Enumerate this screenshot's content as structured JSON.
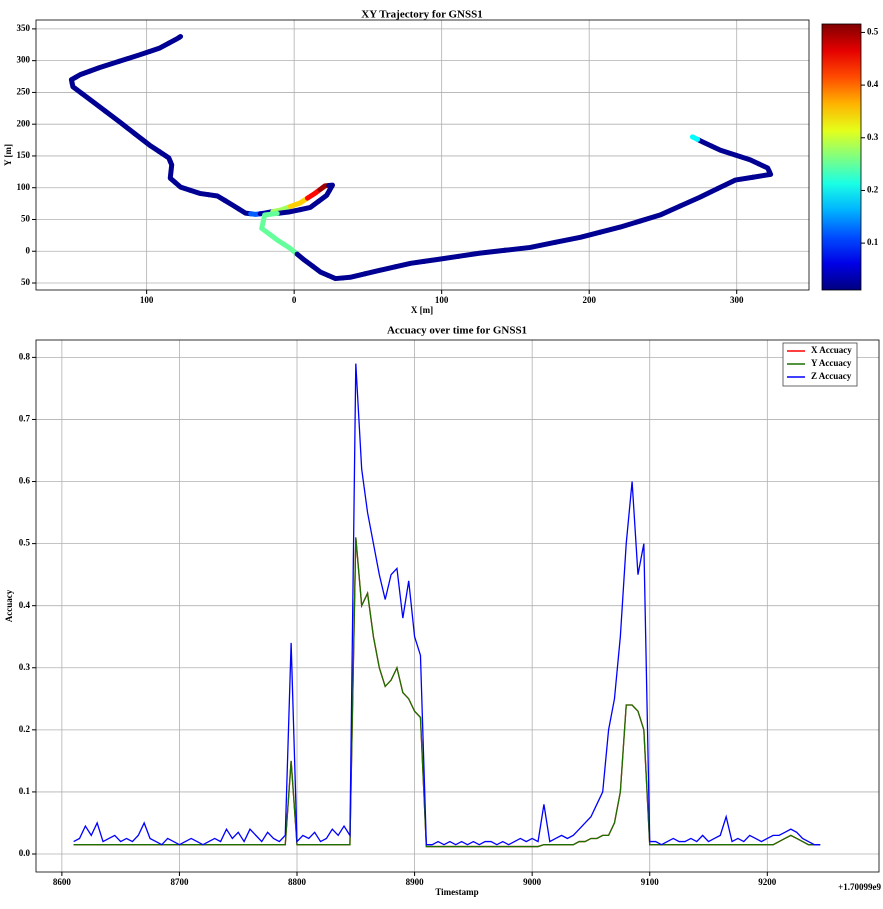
{
  "chart_data": [
    {
      "type": "scatter",
      "title": "XY Trajectory for GNSS1",
      "xlabel": "X [m]",
      "ylabel": "Y [m]",
      "x": [
        -77,
        -79,
        -91,
        -105,
        -132,
        -145,
        -151,
        -150,
        -138,
        -118,
        -98,
        -85,
        -83,
        -84,
        -77,
        -64,
        -52,
        -42,
        -33,
        -26,
        -20,
        -9,
        4,
        14,
        21,
        26,
        22,
        11,
        -3,
        -20,
        -22,
        -11,
        -3,
        7,
        18,
        28,
        38,
        58,
        79,
        97,
        126,
        160,
        194,
        221,
        248,
        275,
        299,
        323,
        321,
        309,
        289,
        277,
        270
      ],
      "y": [
        338,
        335,
        320,
        309,
        289,
        278,
        270,
        259,
        238,
        203,
        167,
        147,
        136,
        115,
        101,
        91,
        87,
        73,
        60,
        58,
        60,
        65,
        76,
        91,
        103,
        104,
        88,
        69,
        62,
        57,
        36,
        17,
        5,
        -14,
        -33,
        -43,
        -41,
        -30,
        -19,
        -13,
        -3,
        6,
        22,
        38,
        57,
        85,
        112,
        121,
        131,
        144,
        159,
        172,
        180
      ],
      "values": [
        0.02,
        0.02,
        0.02,
        0.02,
        0.02,
        0.02,
        0.02,
        0.02,
        0.02,
        0.02,
        0.02,
        0.02,
        0.02,
        0.02,
        0.02,
        0.02,
        0.02,
        0.02,
        0.02,
        0.12,
        0.03,
        0.28,
        0.35,
        0.45,
        0.5,
        0.02,
        0.02,
        0.02,
        0.02,
        0.25,
        0.25,
        0.25,
        0.25,
        0.02,
        0.02,
        0.02,
        0.02,
        0.02,
        0.02,
        0.02,
        0.02,
        0.02,
        0.02,
        0.02,
        0.02,
        0.02,
        0.02,
        0.02,
        0.02,
        0.02,
        0.02,
        0.02,
        0.2
      ],
      "colormap": "jet",
      "clim": [
        0.011,
        0.516
      ],
      "colorbar_ticks": [
        0.1,
        0.2,
        0.3,
        0.4,
        0.5
      ],
      "xlim": [
        -175,
        349
      ],
      "ylim": [
        -61,
        364
      ],
      "xticks": [
        {
          "value": -100,
          "label": "100"
        },
        0,
        100,
        200,
        300
      ],
      "yticks": [
        {
          "value": -50,
          "label": "50"
        },
        0,
        50,
        100,
        150,
        200,
        250,
        300,
        350
      ],
      "grid": true
    },
    {
      "type": "line",
      "title": "Accuacy over time for GNSS1",
      "xlabel": "Timestamp",
      "ylabel": "Accuacy",
      "x_offset_label": "+1.70099e9",
      "x": [
        8610,
        8615,
        8620,
        8625,
        8630,
        8635,
        8640,
        8645,
        8650,
        8655,
        8660,
        8665,
        8670,
        8675,
        8680,
        8685,
        8690,
        8695,
        8700,
        8705,
        8710,
        8715,
        8720,
        8725,
        8730,
        8735,
        8740,
        8745,
        8750,
        8755,
        8760,
        8765,
        8770,
        8775,
        8780,
        8785,
        8790,
        8795,
        8800,
        8805,
        8810,
        8815,
        8820,
        8825,
        8830,
        8835,
        8840,
        8845,
        8850,
        8855,
        8860,
        8865,
        8870,
        8875,
        8880,
        8885,
        8890,
        8895,
        8900,
        8905,
        8910,
        8915,
        8920,
        8925,
        8930,
        8935,
        8940,
        8945,
        8950,
        8955,
        8960,
        8965,
        8970,
        8975,
        8980,
        8985,
        8990,
        8995,
        9000,
        9005,
        9010,
        9015,
        9020,
        9025,
        9030,
        9035,
        9040,
        9045,
        9050,
        9055,
        9060,
        9065,
        9070,
        9075,
        9080,
        9085,
        9090,
        9095,
        9100,
        9105,
        9110,
        9115,
        9120,
        9125,
        9130,
        9135,
        9140,
        9145,
        9150,
        9155,
        9160,
        9165,
        9170,
        9175,
        9180,
        9185,
        9190,
        9195,
        9200,
        9205,
        9210,
        9215,
        9220,
        9225,
        9230,
        9235,
        9240,
        9245
      ],
      "series": [
        {
          "name": "X Accuacy",
          "color": "#ff0000",
          "values": [
            0.015,
            0.015,
            0.015,
            0.015,
            0.015,
            0.015,
            0.015,
            0.015,
            0.015,
            0.015,
            0.015,
            0.015,
            0.015,
            0.015,
            0.015,
            0.015,
            0.015,
            0.015,
            0.015,
            0.015,
            0.015,
            0.015,
            0.015,
            0.015,
            0.015,
            0.015,
            0.015,
            0.015,
            0.015,
            0.015,
            0.015,
            0.015,
            0.015,
            0.015,
            0.015,
            0.015,
            0.015,
            0.15,
            0.015,
            0.015,
            0.015,
            0.015,
            0.015,
            0.015,
            0.015,
            0.015,
            0.015,
            0.015,
            0.51,
            0.4,
            0.42,
            0.35,
            0.3,
            0.27,
            0.28,
            0.3,
            0.26,
            0.25,
            0.23,
            0.22,
            0.012,
            0.012,
            0.012,
            0.012,
            0.012,
            0.012,
            0.012,
            0.012,
            0.012,
            0.012,
            0.012,
            0.012,
            0.012,
            0.012,
            0.012,
            0.012,
            0.012,
            0.012,
            0.012,
            0.012,
            0.015,
            0.015,
            0.015,
            0.015,
            0.015,
            0.015,
            0.02,
            0.02,
            0.025,
            0.025,
            0.03,
            0.03,
            0.05,
            0.1,
            0.24,
            0.24,
            0.23,
            0.2,
            0.015,
            0.015,
            0.015,
            0.015,
            0.015,
            0.015,
            0.015,
            0.015,
            0.015,
            0.015,
            0.015,
            0.015,
            0.015,
            0.015,
            0.015,
            0.015,
            0.015,
            0.015,
            0.015,
            0.015,
            0.015,
            0.015,
            0.02,
            0.025,
            0.03,
            0.025,
            0.02,
            0.015,
            0.015,
            0.015
          ]
        },
        {
          "name": "Y Accuacy",
          "color": "#1a7000",
          "values": [
            0.015,
            0.015,
            0.015,
            0.015,
            0.015,
            0.015,
            0.015,
            0.015,
            0.015,
            0.015,
            0.015,
            0.015,
            0.015,
            0.015,
            0.015,
            0.015,
            0.015,
            0.015,
            0.015,
            0.015,
            0.015,
            0.015,
            0.015,
            0.015,
            0.015,
            0.015,
            0.015,
            0.015,
            0.015,
            0.015,
            0.015,
            0.015,
            0.015,
            0.015,
            0.015,
            0.015,
            0.015,
            0.15,
            0.015,
            0.015,
            0.015,
            0.015,
            0.015,
            0.015,
            0.015,
            0.015,
            0.015,
            0.015,
            0.51,
            0.4,
            0.42,
            0.35,
            0.3,
            0.27,
            0.28,
            0.3,
            0.26,
            0.25,
            0.23,
            0.22,
            0.012,
            0.012,
            0.012,
            0.012,
            0.012,
            0.012,
            0.012,
            0.012,
            0.012,
            0.012,
            0.012,
            0.012,
            0.012,
            0.012,
            0.012,
            0.012,
            0.012,
            0.012,
            0.012,
            0.012,
            0.015,
            0.015,
            0.015,
            0.015,
            0.015,
            0.015,
            0.02,
            0.02,
            0.025,
            0.025,
            0.03,
            0.03,
            0.05,
            0.1,
            0.24,
            0.24,
            0.23,
            0.2,
            0.015,
            0.015,
            0.015,
            0.015,
            0.015,
            0.015,
            0.015,
            0.015,
            0.015,
            0.015,
            0.015,
            0.015,
            0.015,
            0.015,
            0.015,
            0.015,
            0.015,
            0.015,
            0.015,
            0.015,
            0.015,
            0.015,
            0.02,
            0.025,
            0.03,
            0.025,
            0.02,
            0.015,
            0.015,
            0.015
          ]
        },
        {
          "name": "Z Accuacy",
          "color": "#0000ff",
          "values": [
            0.02,
            0.025,
            0.045,
            0.03,
            0.05,
            0.02,
            0.025,
            0.03,
            0.02,
            0.025,
            0.02,
            0.03,
            0.05,
            0.025,
            0.02,
            0.015,
            0.025,
            0.02,
            0.015,
            0.02,
            0.025,
            0.02,
            0.015,
            0.02,
            0.025,
            0.02,
            0.04,
            0.025,
            0.035,
            0.02,
            0.04,
            0.03,
            0.02,
            0.035,
            0.025,
            0.02,
            0.03,
            0.34,
            0.02,
            0.03,
            0.025,
            0.035,
            0.02,
            0.025,
            0.04,
            0.03,
            0.045,
            0.03,
            0.79,
            0.62,
            0.55,
            0.5,
            0.45,
            0.41,
            0.45,
            0.46,
            0.38,
            0.44,
            0.35,
            0.32,
            0.015,
            0.015,
            0.02,
            0.015,
            0.02,
            0.015,
            0.02,
            0.015,
            0.02,
            0.015,
            0.02,
            0.02,
            0.015,
            0.02,
            0.015,
            0.02,
            0.025,
            0.02,
            0.025,
            0.02,
            0.08,
            0.02,
            0.025,
            0.03,
            0.025,
            0.03,
            0.04,
            0.05,
            0.06,
            0.08,
            0.1,
            0.2,
            0.25,
            0.35,
            0.5,
            0.6,
            0.45,
            0.5,
            0.02,
            0.02,
            0.015,
            0.02,
            0.025,
            0.02,
            0.02,
            0.025,
            0.02,
            0.03,
            0.02,
            0.025,
            0.03,
            0.06,
            0.02,
            0.025,
            0.02,
            0.03,
            0.025,
            0.02,
            0.025,
            0.03,
            0.03,
            0.035,
            0.04,
            0.035,
            0.025,
            0.02,
            0.015,
            0.015
          ]
        }
      ],
      "xlim": [
        8578,
        9295
      ],
      "ylim": [
        -0.029,
        0.828
      ],
      "xticks": [
        8600,
        8700,
        8800,
        8900,
        9000,
        9100,
        9200
      ],
      "yticks": [
        {
          "value": 0,
          "label": "0.0"
        },
        0.1,
        0.2,
        0.3,
        0.4,
        0.5,
        0.6,
        0.7,
        0.8
      ],
      "grid": true,
      "legend": "upper right"
    }
  ]
}
